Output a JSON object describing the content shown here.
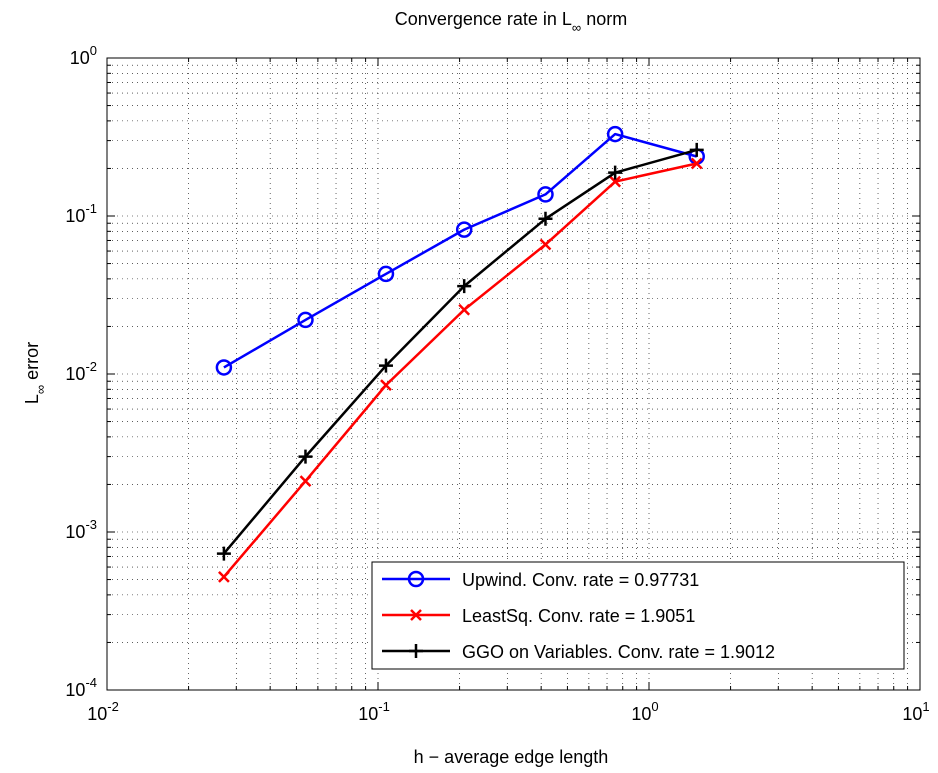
{
  "chart_data": {
    "type": "line",
    "title": {
      "main": "Convergence rate in L",
      "sub": "∞",
      "tail": " norm"
    },
    "xlabel": "h − average edge length",
    "ylabel": {
      "main": "L",
      "sub": "∞",
      "tail": " error"
    },
    "xscale": "log",
    "yscale": "log",
    "xlim": [
      0.01,
      10
    ],
    "ylim": [
      0.0001,
      1
    ],
    "grid": true,
    "legend_position": "bottom-right",
    "x_ticks": [
      {
        "value": 0.01,
        "base": "10",
        "exp": "-2"
      },
      {
        "value": 0.1,
        "base": "10",
        "exp": "-1"
      },
      {
        "value": 1,
        "base": "10",
        "exp": "0"
      },
      {
        "value": 10,
        "base": "10",
        "exp": "1"
      }
    ],
    "y_ticks": [
      {
        "value": 0.0001,
        "base": "10",
        "exp": "-4"
      },
      {
        "value": 0.001,
        "base": "10",
        "exp": "-3"
      },
      {
        "value": 0.01,
        "base": "10",
        "exp": "-2"
      },
      {
        "value": 0.1,
        "base": "10",
        "exp": "-1"
      },
      {
        "value": 1,
        "base": "10",
        "exp": "0"
      }
    ],
    "x": [
      0.027,
      0.054,
      0.107,
      0.208,
      0.415,
      0.75,
      1.5
    ],
    "series": [
      {
        "name": "Upwind. Conv. rate = 0.97731",
        "color": "#0000ff",
        "marker": "circle",
        "values": [
          0.011,
          0.022,
          0.043,
          0.082,
          0.137,
          0.33,
          0.238
        ]
      },
      {
        "name": "LeastSq. Conv. rate = 1.9051",
        "color": "#ff0000",
        "marker": "x",
        "values": [
          0.00052,
          0.0021,
          0.0085,
          0.0255,
          0.066,
          0.165,
          0.215
        ]
      },
      {
        "name": "GGO on Variables. Conv. rate = 1.9012",
        "color": "#000000",
        "marker": "plus",
        "values": [
          0.00073,
          0.003,
          0.0113,
          0.036,
          0.096,
          0.188,
          0.262
        ]
      }
    ]
  }
}
